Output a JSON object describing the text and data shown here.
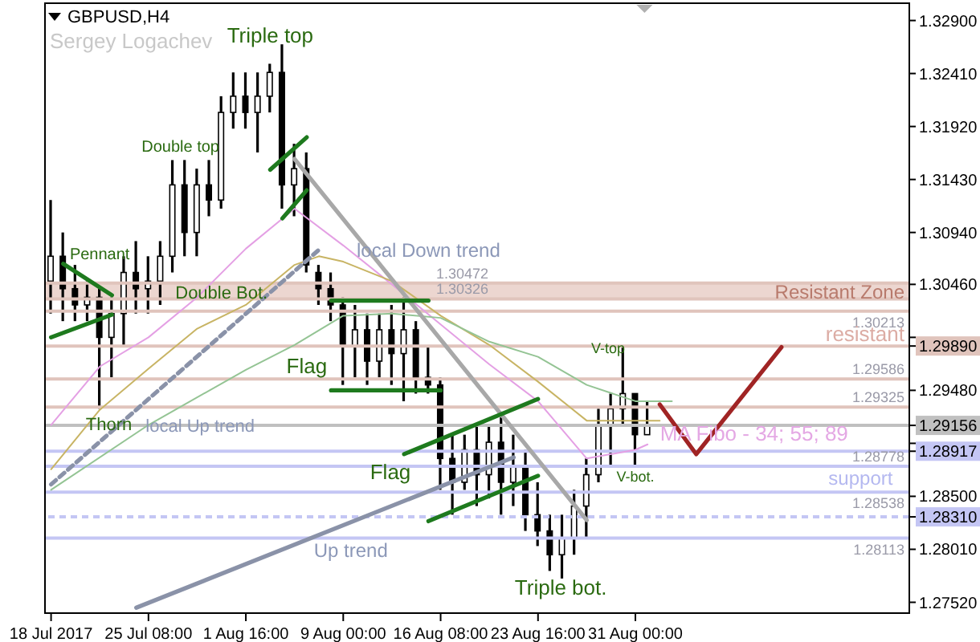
{
  "chart_data": {
    "type": "candlestick",
    "title": "GBPUSD,H4",
    "subtitle": "Sergey Logachev",
    "categories": [
      "18 Jul 2017",
      null,
      null,
      null,
      null,
      null,
      null,
      null,
      "25 Jul 08:00",
      null,
      null,
      null,
      null,
      null,
      null,
      null,
      "1 Aug 16:00",
      null,
      null,
      null,
      null,
      null,
      null,
      null,
      "9 Aug 00:00",
      null,
      null,
      null,
      null,
      null,
      null,
      null,
      "16 Aug 08:00",
      null,
      null,
      null,
      null,
      null,
      null,
      null,
      "23 Aug 16:00",
      null,
      null,
      null,
      null,
      null,
      null,
      null,
      "31 Aug 00:00",
      null,
      null,
      null,
      null,
      null,
      null,
      null,
      null,
      null,
      null,
      null,
      null,
      null,
      null,
      null,
      null,
      null,
      null,
      null,
      null,
      null,
      null
    ],
    "color": "#000000",
    "ohlc": [
      [
        1.3049,
        1.3124,
        1.3019,
        1.3072
      ],
      [
        1.3072,
        1.3094,
        1.3012,
        1.3042
      ],
      [
        1.3042,
        1.3064,
        1.3012,
        1.3027
      ],
      [
        1.3027,
        1.3049,
        1.3012,
        1.3034
      ],
      [
        1.3034,
        1.3042,
        1.2931,
        1.2997
      ],
      [
        1.2997,
        1.3034,
        1.296,
        1.3019
      ],
      [
        1.3019,
        1.3072,
        1.2989,
        1.3057
      ],
      [
        1.3057,
        1.3086,
        1.3019,
        1.3042
      ],
      [
        1.3042,
        1.3072,
        1.3019,
        1.3049
      ],
      [
        1.3049,
        1.3086,
        1.3027,
        1.3072
      ],
      [
        1.3072,
        1.3161,
        1.3057,
        1.3138
      ],
      [
        1.3138,
        1.3161,
        1.3072,
        1.3094
      ],
      [
        1.3094,
        1.3153,
        1.3072,
        1.3138
      ],
      [
        1.3138,
        1.3161,
        1.3109,
        1.3124
      ],
      [
        1.3124,
        1.322,
        1.3116,
        1.3205
      ],
      [
        1.3205,
        1.3242,
        1.319,
        1.322
      ],
      [
        1.322,
        1.3242,
        1.319,
        1.3205
      ],
      [
        1.3205,
        1.3242,
        1.3168,
        1.322
      ],
      [
        1.322,
        1.325,
        1.3205,
        1.3242
      ],
      [
        1.3242,
        1.3268,
        1.3116,
        1.3138
      ],
      [
        1.3138,
        1.3176,
        1.3109,
        1.3153
      ],
      [
        1.3153,
        1.3168,
        1.3057,
        1.3064
      ],
      [
        1.3057,
        1.3064,
        1.3027,
        1.3042
      ],
      [
        1.3042,
        1.3057,
        1.3012,
        1.3027
      ],
      [
        1.3027,
        1.3034,
        1.2953,
        1.2989
      ],
      [
        1.2989,
        1.3027,
        1.296,
        1.3004
      ],
      [
        1.3004,
        1.3019,
        1.2953,
        1.2975
      ],
      [
        1.2975,
        1.3019,
        1.296,
        1.3004
      ],
      [
        1.3004,
        1.3027,
        1.2953,
        1.2982
      ],
      [
        1.2982,
        1.3034,
        1.2938,
        1.3004
      ],
      [
        1.3004,
        1.3012,
        1.2945,
        1.296
      ],
      [
        1.296,
        1.2989,
        1.2945,
        1.2953
      ],
      [
        1.2953,
        1.296,
        1.2856,
        1.2885
      ],
      [
        1.2885,
        1.2907,
        1.2833,
        1.2863
      ],
      [
        1.2863,
        1.2907,
        1.2856,
        1.2893
      ],
      [
        1.2893,
        1.2915,
        1.2841,
        1.287
      ],
      [
        1.287,
        1.2915,
        1.2848,
        1.29
      ],
      [
        1.29,
        1.2923,
        1.2833,
        1.2863
      ],
      [
        1.2863,
        1.2907,
        1.2841,
        1.2878
      ],
      [
        1.2878,
        1.2893,
        1.2818,
        1.2833
      ],
      [
        1.2833,
        1.2863,
        1.2804,
        1.2818
      ],
      [
        1.2818,
        1.2833,
        1.2781,
        1.2796
      ],
      [
        1.2796,
        1.2833,
        1.2774,
        1.2811
      ],
      [
        1.2811,
        1.2856,
        1.2796,
        1.2841
      ],
      [
        1.2841,
        1.2885,
        1.2811,
        1.287
      ],
      [
        1.287,
        1.2931,
        1.2863,
        1.2915
      ],
      [
        1.2915,
        1.2945,
        1.2878,
        1.2931
      ],
      [
        1.2931,
        1.2989,
        1.2915,
        1.2945
      ],
      [
        1.2945,
        1.2945,
        1.2878,
        1.2907
      ],
      [
        1.2907,
        1.2938,
        1.2907,
        1.2916
      ],
      null,
      null,
      null,
      null,
      null,
      null,
      null,
      null,
      null,
      null,
      null,
      null,
      null,
      null,
      null,
      null,
      null,
      null,
      null,
      null,
      null
    ],
    "series": [
      {
        "type": "line",
        "color": "#e4a0e4",
        "values": [
          1.2916,
          null,
          null,
          null,
          1.297,
          null,
          null,
          null,
          1.2997,
          null,
          null,
          null,
          1.3034,
          null,
          null,
          null,
          1.3079,
          null,
          null,
          null,
          1.3116,
          null,
          null,
          null,
          1.3082,
          null,
          null,
          null,
          1.3046,
          null,
          null,
          null,
          1.3009,
          null,
          null,
          null,
          1.2972,
          null,
          null,
          null,
          1.2938,
          null,
          null,
          null,
          1.2885,
          null,
          null,
          null,
          1.2893,
          1.2898,
          null,
          null,
          null,
          null,
          null,
          null,
          null,
          null,
          null,
          null,
          null,
          null,
          null,
          null,
          null,
          null,
          null,
          null,
          null,
          null,
          null
        ]
      },
      {
        "type": "line",
        "color": "#c8b464",
        "values": [
          1.2875,
          null,
          null,
          null,
          1.293,
          null,
          null,
          null,
          1.2968,
          null,
          null,
          null,
          1.3005,
          null,
          null,
          null,
          1.3027,
          null,
          null,
          null,
          1.3064,
          null,
          1.3072,
          null,
          1.3067,
          null,
          null,
          null,
          1.3049,
          null,
          null,
          null,
          1.3017,
          null,
          null,
          null,
          1.299,
          null,
          null,
          null,
          1.2956,
          null,
          null,
          null,
          1.292,
          null,
          null,
          null,
          1.292,
          null,
          1.292,
          null,
          null,
          null,
          null,
          null,
          null,
          null,
          null,
          null,
          null,
          null,
          null,
          null,
          null,
          null,
          null,
          null,
          null,
          null,
          null
        ]
      },
      {
        "type": "line",
        "color": "#94c494",
        "values": [
          1.2856,
          null,
          null,
          null,
          null,
          null,
          null,
          null,
          1.2916,
          null,
          null,
          null,
          null,
          null,
          null,
          null,
          1.2967,
          null,
          null,
          null,
          1.299,
          null,
          null,
          null,
          1.3017,
          null,
          null,
          null,
          1.3019,
          null,
          null,
          null,
          1.3015,
          null,
          null,
          null,
          1.2993,
          null,
          null,
          null,
          1.2979,
          null,
          null,
          null,
          1.2953,
          null,
          null,
          null,
          1.2938,
          null,
          null,
          1.2938,
          null,
          null,
          null,
          null,
          null,
          null,
          null,
          null,
          null,
          null,
          null,
          null,
          null,
          null,
          null,
          null,
          null,
          null,
          null
        ]
      },
      {
        "type": "line",
        "color": "#8a92a8",
        "values": [
          null,
          null,
          null,
          null,
          null,
          null,
          null,
          1.2747,
          null,
          null,
          null,
          null,
          null,
          null,
          null,
          null,
          null,
          null,
          null,
          null,
          null,
          null,
          null,
          null,
          null,
          null,
          null,
          null,
          null,
          null,
          null,
          null,
          null,
          null,
          null,
          null,
          null,
          null,
          1.2886,
          null,
          null,
          null,
          null,
          null,
          null,
          null,
          null,
          null,
          null,
          null,
          null,
          null,
          null,
          null,
          null,
          null,
          null,
          null,
          null,
          null,
          null,
          null,
          null,
          null,
          null,
          null,
          null,
          null,
          null,
          null,
          null
        ]
      },
      {
        "type": "line",
        "color": "#a8a8a8",
        "values": [
          null,
          null,
          null,
          null,
          null,
          null,
          null,
          null,
          null,
          null,
          null,
          null,
          null,
          null,
          null,
          null,
          null,
          null,
          null,
          null,
          1.3162,
          null,
          null,
          null,
          null,
          null,
          null,
          null,
          null,
          null,
          null,
          null,
          null,
          null,
          null,
          null,
          null,
          null,
          null,
          null,
          null,
          null,
          null,
          null,
          1.2828,
          null,
          null,
          null,
          null,
          null,
          null,
          null,
          null,
          null,
          null,
          null,
          null,
          null,
          null,
          null,
          null,
          null,
          null,
          null,
          null,
          null,
          null,
          null,
          null,
          null,
          null
        ]
      },
      {
        "type": "line",
        "color": "#8a92a8",
        "line_style": "dashed",
        "values": [
          1.2861,
          null,
          null,
          null,
          null,
          null,
          null,
          null,
          null,
          null,
          null,
          null,
          null,
          null,
          null,
          null,
          null,
          null,
          null,
          null,
          null,
          null,
          1.3078,
          null,
          null,
          null,
          null,
          null,
          null,
          null,
          null,
          null,
          null,
          null,
          null,
          null,
          null,
          null,
          null,
          null,
          null,
          null,
          null,
          null,
          null,
          null,
          null,
          null,
          null,
          null,
          null,
          null,
          null,
          null,
          null,
          null,
          null,
          null,
          null,
          null,
          null,
          null,
          null,
          null,
          null,
          null,
          null,
          null,
          null,
          null,
          null
        ]
      },
      {
        "type": "line",
        "color": "#a02424",
        "values": [
          null,
          null,
          null,
          null,
          null,
          null,
          null,
          null,
          null,
          null,
          null,
          null,
          null,
          null,
          null,
          null,
          null,
          null,
          null,
          null,
          null,
          null,
          null,
          null,
          null,
          null,
          null,
          null,
          null,
          null,
          null,
          null,
          null,
          null,
          null,
          null,
          null,
          null,
          null,
          null,
          null,
          null,
          null,
          null,
          null,
          null,
          null,
          null,
          null,
          null,
          1.2935,
          null,
          null,
          1.2889,
          null,
          null,
          null,
          null,
          null,
          null,
          1.2988,
          null,
          null,
          null,
          null,
          null,
          null,
          null,
          null,
          null,
          null
        ]
      },
      {
        "type": "line",
        "color": "#1e7a1e",
        "values": [
          null,
          1.3065,
          null,
          null,
          null,
          1.3036,
          null,
          null,
          null,
          null,
          null,
          null,
          null,
          null,
          null,
          null,
          null,
          null,
          null,
          null,
          null,
          null,
          null,
          null,
          null,
          null,
          null,
          null,
          null,
          null,
          null,
          null,
          null,
          null,
          null,
          null,
          null,
          null,
          null,
          null,
          null,
          null,
          null,
          null,
          null,
          null,
          null,
          null,
          null,
          null,
          null,
          null,
          null,
          null,
          null,
          null,
          null,
          null,
          null,
          null,
          null,
          null,
          null,
          null,
          null,
          null,
          null,
          null,
          null,
          null,
          null
        ]
      },
      {
        "type": "line",
        "color": "#1e7a1e",
        "values": [
          1.2997,
          null,
          null,
          null,
          null,
          1.3018,
          null,
          null,
          null,
          null,
          null,
          null,
          null,
          null,
          null,
          null,
          null,
          null,
          null,
          null,
          null,
          null,
          null,
          null,
          null,
          null,
          null,
          null,
          null,
          null,
          null,
          null,
          null,
          null,
          null,
          null,
          null,
          null,
          null,
          null,
          null,
          null,
          null,
          null,
          null,
          null,
          null,
          null,
          null,
          null,
          null,
          null,
          null,
          null,
          null,
          null,
          null,
          null,
          null,
          null,
          null,
          null,
          null,
          null,
          null,
          null,
          null,
          null,
          null,
          null,
          null
        ]
      },
      {
        "type": "line",
        "color": "#1e7a1e",
        "values": [
          null,
          null,
          null,
          null,
          null,
          null,
          null,
          null,
          null,
          null,
          null,
          null,
          null,
          null,
          null,
          null,
          null,
          null,
          1.3152,
          null,
          null,
          1.3182,
          null,
          null,
          null,
          null,
          null,
          null,
          null,
          null,
          null,
          null,
          null,
          null,
          null,
          null,
          null,
          null,
          null,
          null,
          null,
          null,
          null,
          null,
          null,
          null,
          null,
          null,
          null,
          null,
          null,
          null,
          null,
          null,
          null,
          null,
          null,
          null,
          null,
          null,
          null,
          null,
          null,
          null,
          null,
          null,
          null,
          null,
          null,
          null,
          null
        ]
      },
      {
        "type": "line",
        "color": "#1e7a1e",
        "values": [
          null,
          null,
          null,
          null,
          null,
          null,
          null,
          null,
          null,
          null,
          null,
          null,
          null,
          null,
          null,
          null,
          null,
          null,
          null,
          1.3107,
          null,
          1.3133,
          null,
          null,
          null,
          null,
          null,
          null,
          null,
          null,
          null,
          null,
          null,
          null,
          null,
          null,
          null,
          null,
          null,
          null,
          null,
          null,
          null,
          null,
          null,
          null,
          null,
          null,
          null,
          null,
          null,
          null,
          null,
          null,
          null,
          null,
          null,
          null,
          null,
          null,
          null,
          null,
          null,
          null,
          null,
          null,
          null,
          null,
          null,
          null,
          null
        ]
      },
      {
        "type": "line",
        "color": "#1e7a1e",
        "values": [
          null,
          null,
          null,
          null,
          null,
          null,
          null,
          null,
          null,
          null,
          null,
          null,
          null,
          null,
          null,
          null,
          null,
          null,
          null,
          null,
          null,
          null,
          null,
          1.3031,
          null,
          null,
          null,
          null,
          null,
          null,
          null,
          1.3031,
          null,
          null,
          null,
          null,
          null,
          null,
          null,
          null,
          null,
          null,
          null,
          null,
          null,
          null,
          null,
          null,
          null,
          null,
          null,
          null,
          null,
          null,
          null,
          null,
          null,
          null,
          null,
          null,
          null,
          null,
          null,
          null,
          null,
          null,
          null,
          null,
          null,
          null,
          null
        ]
      },
      {
        "type": "line",
        "color": "#1e7a1e",
        "values": [
          null,
          null,
          null,
          null,
          null,
          null,
          null,
          null,
          null,
          null,
          null,
          null,
          null,
          null,
          null,
          null,
          null,
          null,
          null,
          null,
          null,
          null,
          null,
          1.2948,
          null,
          null,
          null,
          null,
          null,
          null,
          null,
          null,
          1.2948,
          null,
          null,
          null,
          null,
          null,
          null,
          null,
          null,
          null,
          null,
          null,
          null,
          null,
          null,
          null,
          null,
          null,
          null,
          null,
          null,
          null,
          null,
          null,
          null,
          null,
          null,
          null,
          null,
          null,
          null,
          null,
          null,
          null,
          null,
          null,
          null,
          null,
          null
        ]
      },
      {
        "type": "line",
        "color": "#1e7a1e",
        "values": [
          null,
          null,
          null,
          null,
          null,
          null,
          null,
          null,
          null,
          null,
          null,
          null,
          null,
          null,
          null,
          null,
          null,
          null,
          null,
          null,
          null,
          null,
          null,
          null,
          null,
          null,
          null,
          null,
          null,
          1.2889,
          null,
          null,
          null,
          null,
          null,
          null,
          null,
          null,
          null,
          null,
          1.294,
          null,
          null,
          null,
          null,
          null,
          null,
          null,
          null,
          null,
          null,
          null,
          null,
          null,
          null,
          null,
          null,
          null,
          null,
          null,
          null,
          null,
          null,
          null,
          null,
          null,
          null,
          null,
          null,
          null,
          null
        ]
      },
      {
        "type": "line",
        "color": "#1e7a1e",
        "values": [
          null,
          null,
          null,
          null,
          null,
          null,
          null,
          null,
          null,
          null,
          null,
          null,
          null,
          null,
          null,
          null,
          null,
          null,
          null,
          null,
          null,
          null,
          null,
          null,
          null,
          null,
          null,
          null,
          null,
          null,
          null,
          1.2827,
          null,
          null,
          null,
          null,
          null,
          null,
          null,
          null,
          1.2869,
          null,
          null,
          null,
          null,
          null,
          null,
          null,
          null,
          null,
          null,
          null,
          null,
          null,
          null,
          null,
          null,
          null,
          null,
          null,
          null,
          null,
          null,
          null,
          null,
          null,
          null,
          null,
          null,
          null,
          null
        ]
      }
    ],
    "ylim": [
      1.2742,
      1.3306
    ],
    "yticks": [
      {
        "value": 1.329,
        "label": "1.32900"
      },
      {
        "value": 1.3241,
        "label": "1.32410"
      },
      {
        "value": 1.3192,
        "label": "1.31920"
      },
      {
        "value": 1.3143,
        "label": "1.31430"
      },
      {
        "value": 1.3094,
        "label": "1.30940"
      },
      {
        "value": 1.3046,
        "label": "1.30460"
      },
      {
        "value": 1.2997,
        "label": null
      },
      {
        "value": 1.2989,
        "label": "1.29890"
      },
      {
        "value": 1.2948,
        "label": "1.29480"
      },
      {
        "value": 1.29156,
        "label": "1.29156"
      },
      {
        "value": 1.2899,
        "label": null
      },
      {
        "value": 1.28917,
        "label": "1.28917"
      },
      {
        "value": 1.285,
        "label": "1.28500"
      },
      {
        "value": 1.2831,
        "label": "1.28310"
      },
      {
        "value": 1.2801,
        "label": "1.28010"
      },
      {
        "value": 1.2752,
        "label": "1.27520"
      }
    ],
    "ref_lines": [
      {
        "axis": "y",
        "value": 1.30472,
        "label": "1.30472",
        "color": "#e0c4bc"
      },
      {
        "axis": "y",
        "value": 1.30326,
        "label": "1.30326",
        "color": "#e0c4bc"
      },
      {
        "axis": "y",
        "value": 1.30213,
        "label": "1.30213",
        "color": "#e0c4bc"
      },
      {
        "axis": "y",
        "value": 1.2989,
        "label": "resistant",
        "color": "#e0c4bc"
      },
      {
        "axis": "y",
        "value": 1.29586,
        "label": "1.29586",
        "color": "#e0c4bc"
      },
      {
        "axis": "y",
        "value": 1.29325,
        "label": "1.29325",
        "color": "#e0c4bc"
      },
      {
        "axis": "y",
        "value": 1.29156,
        "label": null,
        "color": "#c0c0c0"
      },
      {
        "axis": "y",
        "value": 1.28917,
        "label": null,
        "color": "#c4c6f4"
      },
      {
        "axis": "y",
        "value": 1.28778,
        "label": "1.28778",
        "color": "#c4c6f4"
      },
      {
        "axis": "y",
        "value": 1.28538,
        "label": "1.28538",
        "color": "#c4c6f4"
      },
      {
        "axis": "y",
        "value": 1.2831,
        "label": null,
        "color": "#c4c6f4",
        "line_style": "dashed"
      },
      {
        "axis": "y",
        "value": 1.28113,
        "label": "1.28113",
        "color": "#c4c6f4"
      }
    ],
    "bands": [
      {
        "axis": "y",
        "from": 1.30326,
        "to": 1.30472,
        "label": "Resistant Zone",
        "color": "#ecd6d0"
      }
    ],
    "annotations": [
      "Triple top",
      "Double top",
      "Pennant",
      "Double Bot.",
      "local Down trend",
      "Flag",
      "Thorn",
      "local Up trend",
      "Flag",
      "Up trend",
      "Triple bot.",
      "V-top",
      "V-bot.",
      "MA Fibo - 34; 55; 89",
      "support"
    ]
  }
}
